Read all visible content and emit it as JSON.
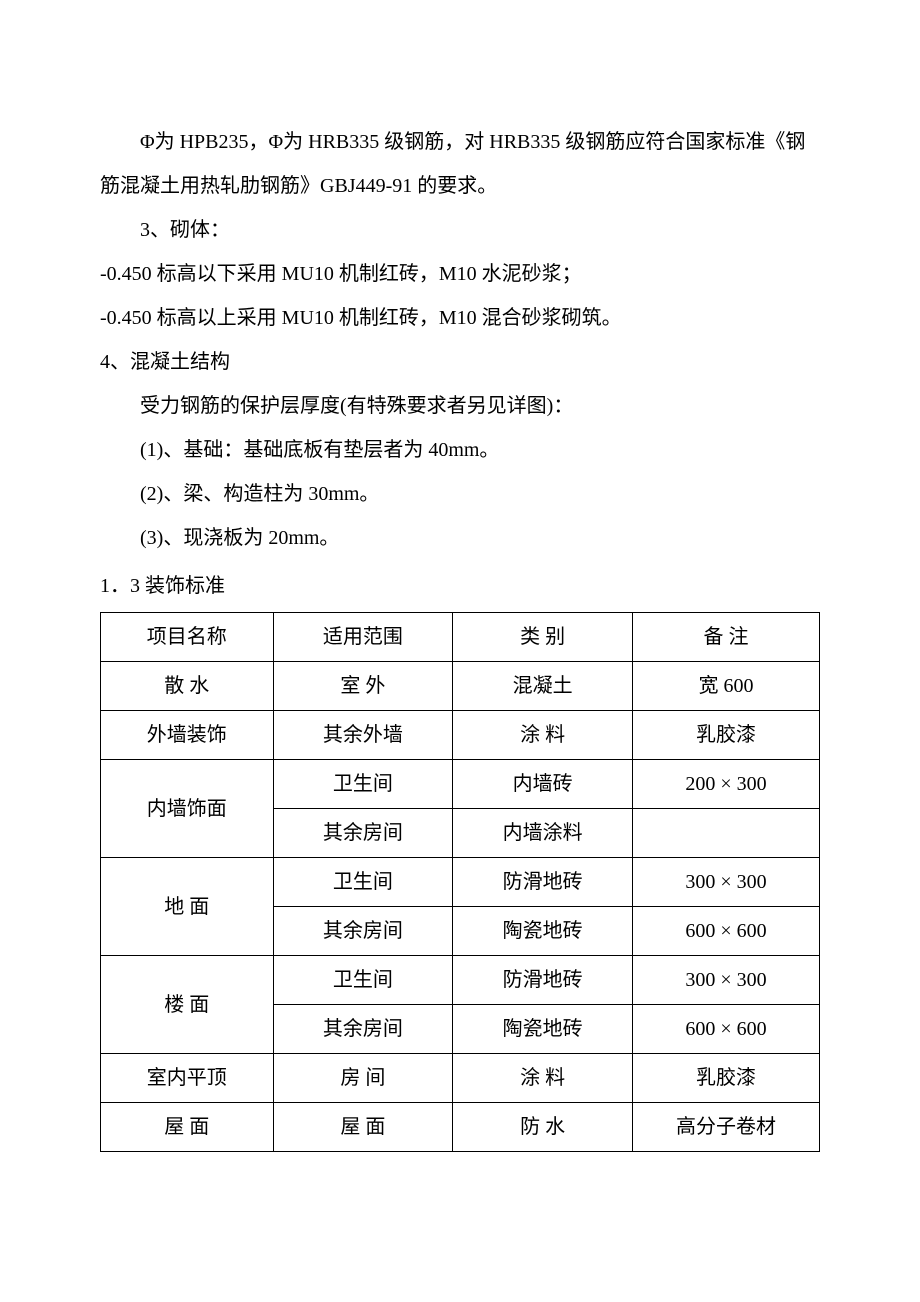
{
  "body": {
    "p1": "Φ为 HPB235，Φ为 HRB335 级钢筋，对 HRB335 级钢筋应符合国家标准《钢筋混凝土用热轧肋钢筋》GBJ449-91 的要求。",
    "p2": "3、砌体：",
    "p3": "-0.450 标高以下采用 MU10 机制红砖，M10 水泥砂浆；",
    "p4": "-0.450 标高以上采用 MU10 机制红砖，M10 混合砂浆砌筑。",
    "p5": "4、混凝土结构",
    "p6": "受力钢筋的保护层厚度(有特殊要求者另见详图)：",
    "p7": "(1)、基础：基础底板有垫层者为 40mm。",
    "p8": "(2)、梁、构造柱为 30mm。",
    "p9": "(3)、现浇板为 20mm。",
    "p10": "1．3 装饰标准"
  },
  "table": {
    "header": {
      "c1": "项目名称",
      "c2": "适用范围",
      "c3": "类 别",
      "c4": "备 注"
    },
    "rows": [
      {
        "c1": "散 水",
        "c2": "室 外",
        "c3": "混凝土",
        "c4": "宽 600"
      },
      {
        "c1": "外墙装饰",
        "c2": "其余外墙",
        "c3": "涂 料",
        "c4": "乳胶漆"
      },
      {
        "c1": "内墙饰面",
        "g1": {
          "c2": "卫生间",
          "c3": "内墙砖",
          "c4": "200 × 300"
        },
        "g2": {
          "c2": "其余房间",
          "c3": "内墙涂料",
          "c4": ""
        }
      },
      {
        "c1": "地 面",
        "g1": {
          "c2": "卫生间",
          "c3": "防滑地砖",
          "c4": "300 × 300"
        },
        "g2": {
          "c2": "其余房间",
          "c3": "陶瓷地砖",
          "c4": "600 × 600"
        }
      },
      {
        "c1": "楼 面",
        "g1": {
          "c2": "卫生间",
          "c3": "防滑地砖",
          "c4": "300 × 300"
        },
        "g2": {
          "c2": "其余房间",
          "c3": "陶瓷地砖",
          "c4": "600 × 600"
        }
      },
      {
        "c1": "室内平顶",
        "c2": "房 间",
        "c3": "涂 料",
        "c4": "乳胶漆"
      },
      {
        "c1": "屋 面",
        "c2": "屋 面",
        "c3": "防 水",
        "c4": "高分子卷材"
      }
    ]
  }
}
